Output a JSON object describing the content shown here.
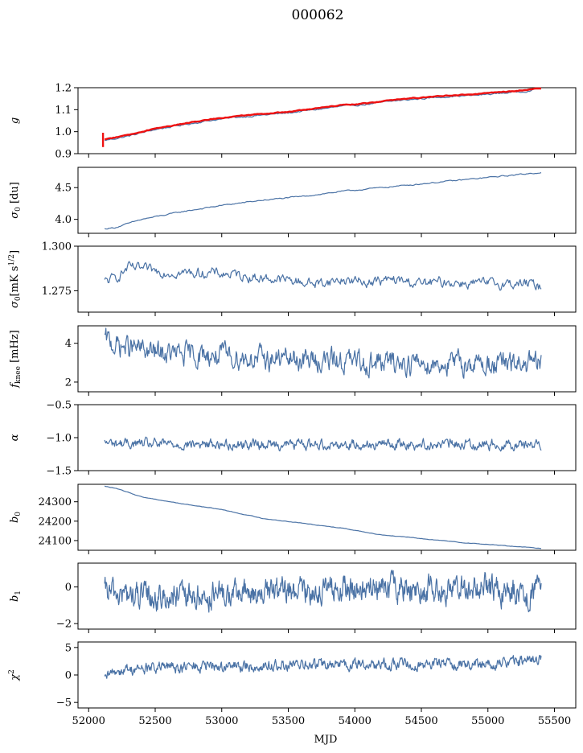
{
  "figure": {
    "title": "000062",
    "xlabel": "MJD"
  },
  "colors": {
    "series": "#4a72a5",
    "overlay": "#ee1111"
  },
  "chart_data": [
    {
      "type": "line",
      "ylabel_parts": [
        {
          "t": "g",
          "i": true
        }
      ],
      "grid": false,
      "xlim": [
        51920,
        55660
      ],
      "ylim": [
        0.9,
        1.2
      ],
      "yticks": [
        0.9,
        1.0,
        1.1,
        1.2
      ],
      "ytick_labels": [
        "0.9",
        "1.0",
        "1.1",
        "1.2"
      ],
      "x": [
        52120,
        52300,
        52500,
        52700,
        52900,
        53100,
        53300,
        53500,
        53700,
        53900,
        54100,
        54300,
        54500,
        54700,
        54900,
        55100,
        55300,
        55400
      ],
      "series": [
        {
          "values": [
            0.96,
            0.98,
            1.01,
            1.03,
            1.05,
            1.065,
            1.075,
            1.085,
            1.1,
            1.115,
            1.125,
            1.14,
            1.15,
            1.16,
            1.165,
            1.175,
            1.185,
            1.2
          ],
          "color": "#4a72a5"
        },
        {
          "values": [
            0.965,
            0.985,
            1.015,
            1.035,
            1.055,
            1.07,
            1.08,
            1.09,
            1.105,
            1.12,
            1.13,
            1.145,
            1.155,
            1.165,
            1.17,
            1.18,
            1.19,
            1.2
          ],
          "color": "#ee1111"
        }
      ]
    },
    {
      "type": "line",
      "ylabel_parts": [
        {
          "t": "σ",
          "i": true
        },
        {
          "t": "0",
          "sub": true
        },
        {
          "t": " [du]"
        }
      ],
      "grid": false,
      "xlim": [
        51920,
        55660
      ],
      "ylim": [
        3.78,
        4.82
      ],
      "yticks": [
        4.0,
        4.5
      ],
      "ytick_labels": [
        "4.0",
        "4.5"
      ],
      "x": [
        52120,
        52200,
        52400,
        52700,
        53000,
        53300,
        53600,
        53900,
        54200,
        54500,
        54800,
        55100,
        55400
      ],
      "series": [
        {
          "values": [
            3.85,
            3.87,
            4.0,
            4.12,
            4.22,
            4.3,
            4.36,
            4.44,
            4.5,
            4.56,
            4.62,
            4.68,
            4.74
          ]
        }
      ]
    },
    {
      "type": "line",
      "ylabel_parts": [
        {
          "t": "σ",
          "i": true
        },
        {
          "t": "0",
          "sub": true
        },
        {
          "t": "[mK s"
        },
        {
          "t": "1/2",
          "sup": true
        },
        {
          "t": "]"
        }
      ],
      "grid": false,
      "xlim": [
        51920,
        55660
      ],
      "ylim": [
        1.263,
        1.3
      ],
      "yticks": [
        1.275,
        1.3
      ],
      "ytick_labels": [
        "1.275",
        "1.300"
      ],
      "x": [
        52120,
        52200,
        52300,
        52500,
        52700,
        52900,
        53100,
        53300,
        53500,
        53700,
        53900,
        54100,
        54300,
        54500,
        54700,
        54900,
        55100,
        55300,
        55400
      ],
      "series": [
        {
          "values": [
            1.28,
            1.282,
            1.288,
            1.286,
            1.285,
            1.285,
            1.284,
            1.282,
            1.281,
            1.279,
            1.281,
            1.28,
            1.281,
            1.279,
            1.28,
            1.279,
            1.279,
            1.279,
            1.277
          ]
        }
      ]
    },
    {
      "type": "line",
      "ylabel_parts": [
        {
          "t": "f",
          "i": true
        },
        {
          "t": "knee",
          "sub": true
        },
        {
          "t": " [mHz]"
        }
      ],
      "grid": false,
      "xlim": [
        51920,
        55660
      ],
      "ylim": [
        1.5,
        4.9
      ],
      "yticks": [
        2,
        4
      ],
      "ytick_labels": [
        "2",
        "4"
      ],
      "x": [
        52120,
        52200,
        52300,
        52500,
        52700,
        52900,
        53100,
        53300,
        53500,
        53700,
        53900,
        54100,
        54300,
        54500,
        54700,
        54900,
        55100,
        55300,
        55400
      ],
      "series": [
        {
          "values": [
            4.2,
            3.9,
            3.8,
            3.5,
            3.4,
            3.4,
            3.3,
            3.2,
            3.2,
            3.1,
            3.1,
            3.0,
            3.0,
            3.0,
            2.95,
            2.95,
            2.9,
            2.9,
            2.9
          ]
        }
      ]
    },
    {
      "type": "line",
      "ylabel_parts": [
        {
          "t": "α",
          "i": true
        }
      ],
      "grid": false,
      "xlim": [
        51920,
        55660
      ],
      "ylim": [
        -1.5,
        -0.5
      ],
      "yticks": [
        -1.5,
        -1.0,
        -0.5
      ],
      "ytick_labels": [
        "−1.5",
        "−1.0",
        "−0.5"
      ],
      "x": [
        52120,
        52500,
        52900,
        53300,
        53700,
        54100,
        54500,
        54900,
        55400
      ],
      "series": [
        {
          "values": [
            -1.08,
            -1.1,
            -1.1,
            -1.1,
            -1.1,
            -1.1,
            -1.1,
            -1.1,
            -1.1
          ]
        }
      ]
    },
    {
      "type": "line",
      "ylabel_parts": [
        {
          "t": "b",
          "i": true
        },
        {
          "t": "0",
          "sub": true
        }
      ],
      "grid": false,
      "xlim": [
        51920,
        55660
      ],
      "ylim": [
        24050,
        24390
      ],
      "yticks": [
        24100,
        24200,
        24300
      ],
      "ytick_labels": [
        "24100",
        "24200",
        "24300"
      ],
      "x": [
        52120,
        52200,
        52400,
        52700,
        53000,
        53300,
        53600,
        53900,
        54200,
        54500,
        54800,
        55100,
        55400
      ],
      "series": [
        {
          "values": [
            24380,
            24370,
            24325,
            24290,
            24260,
            24215,
            24190,
            24165,
            24130,
            24110,
            24090,
            24075,
            24060
          ]
        }
      ]
    },
    {
      "type": "line",
      "ylabel_parts": [
        {
          "t": "b",
          "i": true
        },
        {
          "t": "1",
          "sub": true
        }
      ],
      "grid": false,
      "xlim": [
        51920,
        55660
      ],
      "ylim": [
        -2.3,
        1.3
      ],
      "yticks": [
        -2,
        0
      ],
      "ytick_labels": [
        "−2",
        "0"
      ],
      "x": [
        52120,
        52500,
        52900,
        53300,
        53700,
        54100,
        54500,
        54900,
        55400
      ],
      "series": [
        {
          "values": [
            -0.3,
            -0.6,
            -0.5,
            -0.3,
            -0.2,
            -0.1,
            -0.1,
            -0.1,
            -0.3
          ]
        }
      ]
    },
    {
      "type": "line",
      "ylabel_parts": [
        {
          "t": "χ",
          "i": true
        },
        {
          "t": "2",
          "sup": true
        }
      ],
      "grid": false,
      "xlim": [
        51920,
        55660
      ],
      "ylim": [
        -6,
        6
      ],
      "yticks": [
        -5,
        0,
        5
      ],
      "ytick_labels": [
        "−5",
        "0",
        "5"
      ],
      "xticks": [
        52000,
        52500,
        53000,
        53500,
        54000,
        54500,
        55000,
        55500
      ],
      "xtick_labels": [
        "52000",
        "52500",
        "53000",
        "53500",
        "54000",
        "54500",
        "55000",
        "55500"
      ],
      "x": [
        52120,
        52200,
        52500,
        52900,
        53300,
        53700,
        54100,
        54500,
        54900,
        55300,
        55400
      ],
      "series": [
        {
          "values": [
            -1.0,
            0.8,
            1.3,
            1.5,
            1.6,
            1.8,
            1.9,
            2.0,
            2.0,
            2.5,
            3.0
          ]
        }
      ]
    }
  ]
}
